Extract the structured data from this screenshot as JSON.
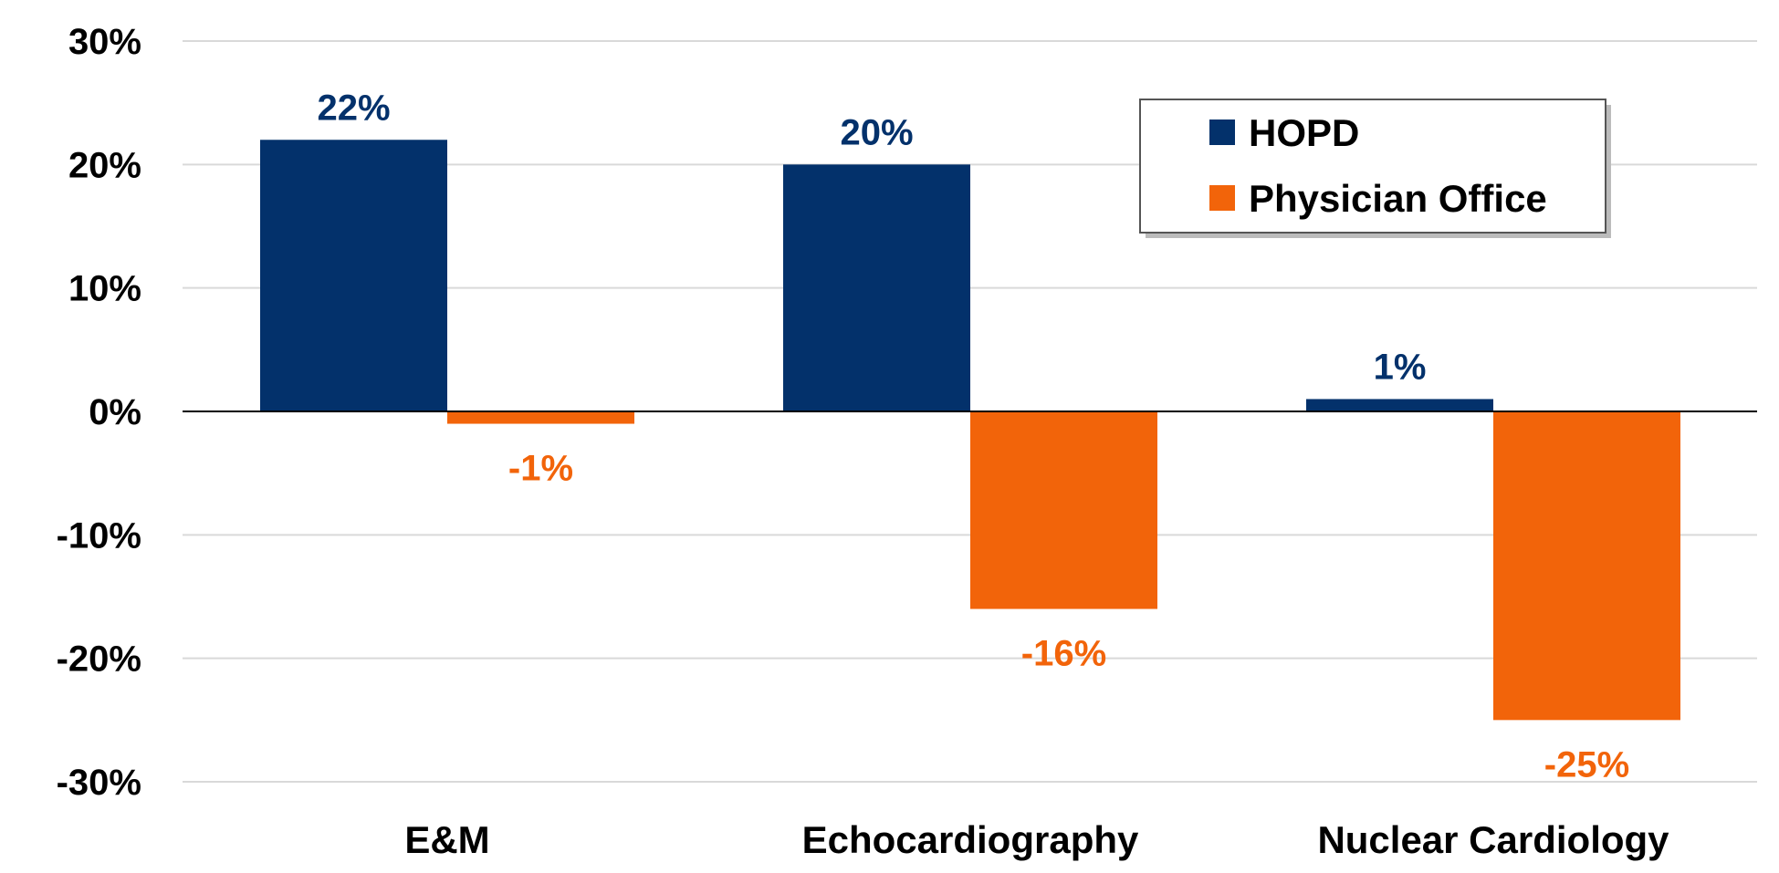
{
  "chart_data": {
    "type": "bar",
    "categories": [
      "E&M",
      "Echocardiography",
      "Nuclear Cardiology"
    ],
    "series": [
      {
        "name": "HOPD",
        "values": [
          22,
          20,
          1
        ],
        "color": "#03316B",
        "labels": [
          "22%",
          "20%",
          "1%"
        ]
      },
      {
        "name": "Physician Office",
        "values": [
          -1,
          -16,
          -25
        ],
        "color": "#F2640A",
        "labels": [
          "-1%",
          "-16%",
          "-25%"
        ]
      }
    ],
    "ylim": [
      -30,
      30
    ],
    "yticks": [
      30,
      20,
      10,
      0,
      -10,
      -20,
      -30
    ],
    "ytick_labels": [
      "30%",
      "20%",
      "10%",
      "0%",
      "-10%",
      "-20%",
      "-30%"
    ],
    "grid": true,
    "legend_position": "top-right",
    "title": "",
    "xlabel": "",
    "ylabel": ""
  }
}
